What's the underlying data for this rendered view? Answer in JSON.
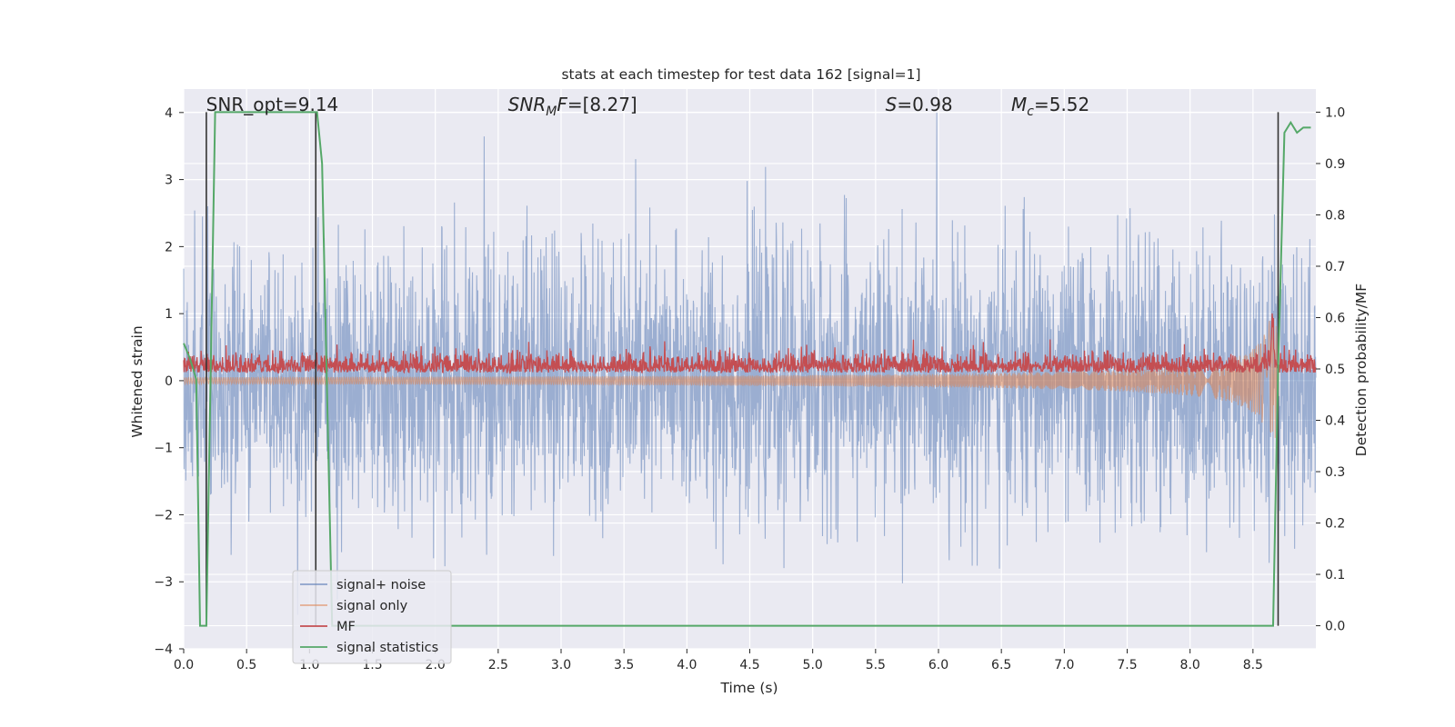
{
  "chart_data": {
    "type": "line",
    "title": "stats at each timestep for test data 162 [signal=1]",
    "xlabel": "Time (s)",
    "ylabel": "Whitened strain",
    "ylabel_right": "Detection probability/MF",
    "xlim": [
      0.0,
      9.0
    ],
    "ylim": [
      -4,
      4.35
    ],
    "ylim_right": [
      -0.045,
      1.045
    ],
    "x_ticks": [
      "0.0",
      "0.5",
      "1.0",
      "1.5",
      "2.0",
      "2.5",
      "3.0",
      "3.5",
      "4.0",
      "4.5",
      "5.0",
      "5.5",
      "6.0",
      "6.5",
      "7.0",
      "7.5",
      "8.0",
      "8.5"
    ],
    "y_ticks": [
      "4",
      "3",
      "2",
      "1",
      "0",
      "−1",
      "−2",
      "−3",
      "−4"
    ],
    "y_ticks_right": [
      "1.0",
      "0.9",
      "0.8",
      "0.7",
      "0.6",
      "0.5",
      "0.4",
      "0.3",
      "0.2",
      "0.1",
      "0.0"
    ],
    "grid": true,
    "legend_position": "lower-left",
    "annotations": [
      {
        "text": "SNR_opt=9.14",
        "math": false,
        "x": 0.2
      },
      {
        "base": "SNR",
        "sub": "M",
        "rest": "F=[8.27]",
        "math": true,
        "x": 2.6
      },
      {
        "base": "S",
        "sub": "",
        "rest": "=0.98",
        "math": true,
        "x": 5.6
      },
      {
        "base": "M",
        "sub": "c",
        "rest": "=5.52",
        "math": true,
        "x": 6.6
      }
    ],
    "series": [
      {
        "name": "signal+ noise",
        "color": "#4c72b0",
        "axis": "left",
        "kind": "noise",
        "sigma": 1.0,
        "x_range": [
          0.0,
          9.0
        ]
      },
      {
        "name": "signal only",
        "color": "#dd8452",
        "axis": "left",
        "kind": "chirp",
        "x_range": [
          0.0,
          8.7
        ],
        "amplitude_start": 0.05,
        "amplitude_peak": 0.9
      },
      {
        "name": "MF",
        "color": "#c44e52",
        "axis": "right",
        "kind": "matched-filter",
        "baseline": 0.505,
        "x_range": [
          0.0,
          9.0
        ]
      },
      {
        "name": "signal statistics",
        "color": "#55a868",
        "axis": "right",
        "kind": "line",
        "x": [
          0.0,
          0.05,
          0.1,
          0.13,
          0.18,
          0.25,
          0.45,
          1.06,
          1.1,
          1.18,
          1.25,
          2.0,
          8.66,
          8.7,
          8.75,
          8.8,
          8.85,
          8.9,
          8.96
        ],
        "y": [
          0.55,
          0.52,
          0.48,
          0.0,
          0.0,
          1.0,
          1.0,
          1.0,
          0.9,
          0.0,
          0.0,
          0.0,
          0.0,
          0.5,
          0.96,
          0.98,
          0.96,
          0.97,
          0.97
        ]
      },
      {
        "name": "",
        "color": "#333333",
        "axis": "right",
        "kind": "markers",
        "x": [
          0.18,
          1.05,
          8.7
        ],
        "y_low": 0.0,
        "y_high": 1.0
      }
    ]
  }
}
